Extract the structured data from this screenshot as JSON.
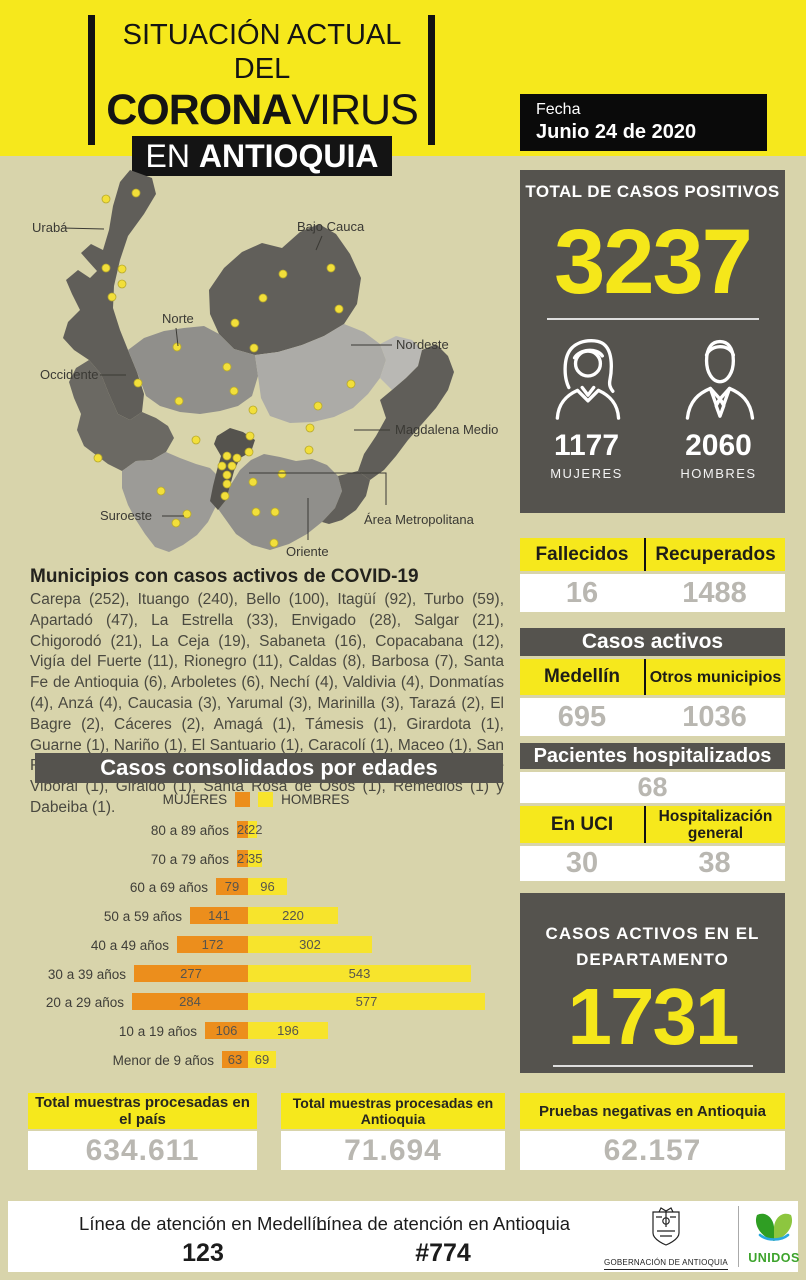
{
  "colors": {
    "accent_yellow": "#F6E81C",
    "dark_box": "#55534E",
    "page_bg": "#D8D4AB",
    "value_gray": "#B9B7B1",
    "bar_orange": "#EC8E1C",
    "bar_yellow": "#F7E42C",
    "dot_yellow": "#F2DF3A"
  },
  "header": {
    "line1": "SITUACIÓN ACTUAL DEL",
    "line2_bold": "CORONA",
    "line2_regular": "VIRUS",
    "line3_regular": "EN",
    "line3_bold": "ANTIOQUIA",
    "fecha_label": "Fecha",
    "fecha_value": "Junio 24 de 2020"
  },
  "map": {
    "labels": [
      "Urabá",
      "Bajo Cauca",
      "Norte",
      "Nordeste",
      "Occidente",
      "Magdalena Medio",
      "Suroeste",
      "Área Metropolitana",
      "Oriente"
    ],
    "dots": [
      [
        82,
        31
      ],
      [
        112,
        25
      ],
      [
        82,
        100
      ],
      [
        98,
        101
      ],
      [
        98,
        116
      ],
      [
        88,
        129
      ],
      [
        259,
        106
      ],
      [
        307,
        100
      ],
      [
        239,
        130
      ],
      [
        315,
        141
      ],
      [
        211,
        155
      ],
      [
        153,
        179
      ],
      [
        230,
        180
      ],
      [
        203,
        199
      ],
      [
        114,
        215
      ],
      [
        210,
        223
      ],
      [
        155,
        233
      ],
      [
        229,
        242
      ],
      [
        294,
        238
      ],
      [
        327,
        216
      ],
      [
        286,
        260
      ],
      [
        226,
        268
      ],
      [
        172,
        272
      ],
      [
        285,
        282
      ],
      [
        74,
        290
      ],
      [
        203,
        288
      ],
      [
        213,
        290
      ],
      [
        225,
        284
      ],
      [
        198,
        298
      ],
      [
        208,
        298
      ],
      [
        203,
        307
      ],
      [
        258,
        306
      ],
      [
        229,
        314
      ],
      [
        203,
        316
      ],
      [
        201,
        328
      ],
      [
        137,
        323
      ],
      [
        232,
        344
      ],
      [
        251,
        344
      ],
      [
        163,
        346
      ],
      [
        152,
        355
      ],
      [
        250,
        375
      ]
    ]
  },
  "totales": {
    "titulo": "TOTAL DE CASOS POSITIVOS",
    "valor": "3237",
    "mujeres_valor": "1177",
    "mujeres_label": "MUJERES",
    "hombres_valor": "2060",
    "hombres_label": "HOMBRES"
  },
  "indicadores": {
    "fallecidos_label": "Fallecidos",
    "fallecidos_valor": "16",
    "recuperados_label": "Recuperados",
    "recuperados_valor": "1488",
    "casos_activos_titulo": "Casos activos",
    "medellin_label": "Medellín",
    "medellin_valor": "695",
    "otros_label": "Otros municipios",
    "otros_valor": "1036",
    "hospitalizados_titulo": "Pacientes hospitalizados",
    "hospitalizados_valor": "68",
    "uci_label": "En UCI",
    "uci_valor": "30",
    "hosp_general_label": "Hospitalización general",
    "hosp_general_valor": "38",
    "departamento_linea1": "CASOS ACTIVOS EN EL",
    "departamento_linea2": "DEPARTAMENTO",
    "departamento_valor": "1731"
  },
  "municipios": {
    "titulo": "Municipios con casos activos de COVID-19",
    "lista": "Carepa (252), Ituango (240), Bello (100), Itagüí (92), Turbo (59), Apartadó (47), La Estrella (33), Envigado (28), Salgar (21), Chigorodó (21), La Ceja (19), Sabaneta (16), Copacabana (12), Vigía del Fuerte (11), Rionegro (11), Caldas (8), Barbosa (7), Santa Fe de Antioquia (6), Arboletes (6), Nechí (4), Valdivia (4), Donmatías (4), Anzá (4), Caucasia (3), Yarumal (3), Marinilla (3), Tarazá (2), El Bagre (2), Cáceres (2), Amagá (1), Támesis (1), Girardota (1), Guarne (1), Nariño (1), El Santuario (1), Caracolí (1), Maceo (1), San Roque (1), San Juan de Urabá (1), Hispania (1), El Carmen de Viboral (1), Giraldo (1), Santa Rosa de Osos (1), Remedios (1) y Dabeiba (1)."
  },
  "chart_data": {
    "type": "bar",
    "orientation": "horizontal-pyramid",
    "title": "Casos consolidados por edades",
    "categories": [
      "80 a 89 años",
      "70 a 79 años",
      "60 a 69 años",
      "50 a 59 años",
      "40 a 49 años",
      "30 a 39 años",
      "20 a 29 años",
      "10 a 19 años",
      "Menor de 9 años"
    ],
    "series": [
      {
        "name": "MUJERES",
        "color": "#EC8E1C",
        "values": [
          28,
          27,
          79,
          141,
          172,
          277,
          284,
          106,
          63
        ]
      },
      {
        "name": "HOMBRES",
        "color": "#F7E42C",
        "values": [
          22,
          35,
          96,
          220,
          302,
          543,
          577,
          196,
          69
        ]
      }
    ],
    "legend_position": "top",
    "value_labels": "inside-bars"
  },
  "muestras": {
    "pais_label": "Total muestras procesadas en el país",
    "pais_valor": "634.611",
    "antioquia_label": "Total muestras procesadas en Antioquia",
    "antioquia_valor": "71.694",
    "negativas_label": "Pruebas negativas en Antioquia",
    "negativas_valor": "62.157"
  },
  "footer": {
    "medellin_label": "Línea de atención en Medellín",
    "medellin_valor": "123",
    "antioquia_label": "Línea de atención en Antioquia",
    "antioquia_valor": "#774",
    "gobernacion": "GOBERNACIÓN DE ANTIOQUIA",
    "unidos": "UNIDOS"
  }
}
